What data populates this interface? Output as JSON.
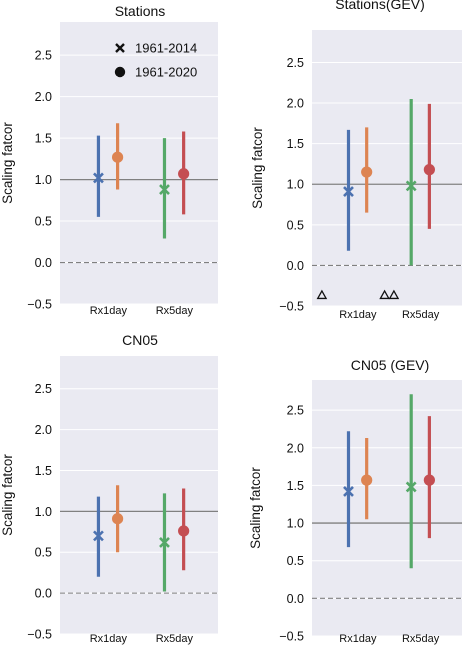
{
  "legend": {
    "items": [
      {
        "label": "1961-2014",
        "marker": "x"
      },
      {
        "label": "1961-2020",
        "marker": "o"
      }
    ]
  },
  "colors": {
    "panel_bg": "#eaeaf2",
    "grid": "#ffffff",
    "rx1day_early": "#4c72b0",
    "rx1day_late": "#dd8452",
    "rx5day_early": "#55a868",
    "rx5day_late": "#c44e52",
    "reference_line": "#808080",
    "zero_line": "#808080"
  },
  "chart_data": [
    {
      "type": "scatter",
      "title": "Stations",
      "ylabel": "Scaling fatcor",
      "xlabel": "",
      "categories": [
        "Rx1day",
        "Rx5day"
      ],
      "ylim": [
        -0.5,
        2.9
      ],
      "yticks": [
        "−0.5",
        "0.0",
        "0.5",
        "1.0",
        "1.5",
        "2.0",
        "2.5"
      ],
      "grid": true,
      "legend_position": "top-right",
      "reference_lines": {
        "solid": 1.0,
        "dashed": 0.0
      },
      "series": [
        {
          "name": "1961-2014",
          "marker": "x",
          "values": [
            {
              "category": "Rx1day",
              "value": 1.02,
              "low": 0.55,
              "high": 1.53
            },
            {
              "category": "Rx5day",
              "value": 0.88,
              "low": 0.29,
              "high": 1.5
            }
          ]
        },
        {
          "name": "1961-2020",
          "marker": "o",
          "values": [
            {
              "category": "Rx1day",
              "value": 1.27,
              "low": 0.88,
              "high": 1.68
            },
            {
              "category": "Rx5day",
              "value": 1.07,
              "low": 0.58,
              "high": 1.58
            }
          ]
        }
      ],
      "annotations": []
    },
    {
      "type": "scatter",
      "title": "Stations(GEV)",
      "ylabel": "Scaling fatcor",
      "xlabel": "",
      "categories": [
        "Rx1day",
        "Rx5day"
      ],
      "ylim": [
        -0.5,
        2.9
      ],
      "yticks": [
        "−0.5",
        "0.0",
        "0.5",
        "1.0",
        "1.5",
        "2.0",
        "2.5"
      ],
      "grid": true,
      "legend_position": "none",
      "reference_lines": {
        "solid": 1.0,
        "dashed": 0.0
      },
      "series": [
        {
          "name": "1961-2014",
          "marker": "x",
          "values": [
            {
              "category": "Rx1day",
              "value": 0.91,
              "low": 0.18,
              "high": 1.67
            },
            {
              "category": "Rx5day",
              "value": 0.98,
              "low": 0.0,
              "high": 2.05
            }
          ]
        },
        {
          "name": "1961-2020",
          "marker": "o",
          "values": [
            {
              "category": "Rx1day",
              "value": 1.15,
              "low": 0.65,
              "high": 1.7
            },
            {
              "category": "Rx5day",
              "value": 1.18,
              "low": 0.45,
              "high": 1.99
            }
          ]
        }
      ],
      "annotations": [
        {
          "marker": "triangle",
          "category": "Rx1day",
          "offset": -0.24,
          "value": -0.37
        },
        {
          "marker": "triangle",
          "category": "Rx1day",
          "offset": 0.24,
          "value": -0.37
        },
        {
          "marker": "triangle",
          "category": "Rx5day",
          "offset": -0.24,
          "value": -0.37
        }
      ]
    },
    {
      "type": "scatter",
      "title": "CN05",
      "ylabel": "Scaling fatcor",
      "xlabel": "",
      "categories": [
        "Rx1day",
        "Rx5day"
      ],
      "ylim": [
        -0.5,
        2.9
      ],
      "yticks": [
        "−0.5",
        "0.0",
        "0.5",
        "1.0",
        "1.5",
        "2.0",
        "2.5"
      ],
      "grid": true,
      "legend_position": "none",
      "reference_lines": {
        "solid": 1.0,
        "dashed": 0.0
      },
      "series": [
        {
          "name": "1961-2014",
          "marker": "x",
          "values": [
            {
              "category": "Rx1day",
              "value": 0.7,
              "low": 0.2,
              "high": 1.18
            },
            {
              "category": "Rx5day",
              "value": 0.62,
              "low": 0.02,
              "high": 1.22
            }
          ]
        },
        {
          "name": "1961-2020",
          "marker": "o",
          "values": [
            {
              "category": "Rx1day",
              "value": 0.91,
              "low": 0.5,
              "high": 1.32
            },
            {
              "category": "Rx5day",
              "value": 0.76,
              "low": 0.28,
              "high": 1.28
            }
          ]
        }
      ],
      "annotations": []
    },
    {
      "type": "scatter",
      "title": "CN05 (GEV)",
      "ylabel": "Scaling fatcor",
      "xlabel": "",
      "categories": [
        "Rx1day",
        "Rx5day"
      ],
      "ylim": [
        -0.5,
        2.9
      ],
      "yticks": [
        "−0.5",
        "0.0",
        "0.5",
        "1.0",
        "1.5",
        "2.0",
        "2.5"
      ],
      "grid": true,
      "legend_position": "none",
      "reference_lines": {
        "solid": 1.0,
        "dashed": 0.0
      },
      "series": [
        {
          "name": "1961-2014",
          "marker": "x",
          "values": [
            {
              "category": "Rx1day",
              "value": 1.42,
              "low": 0.68,
              "high": 2.22
            },
            {
              "category": "Rx5day",
              "value": 1.48,
              "low": 0.4,
              "high": 2.71
            }
          ]
        },
        {
          "name": "1961-2020",
          "marker": "o",
          "values": [
            {
              "category": "Rx1day",
              "value": 1.57,
              "low": 1.05,
              "high": 2.13
            },
            {
              "category": "Rx5day",
              "value": 1.57,
              "low": 0.8,
              "high": 2.42
            }
          ]
        }
      ],
      "annotations": []
    }
  ]
}
